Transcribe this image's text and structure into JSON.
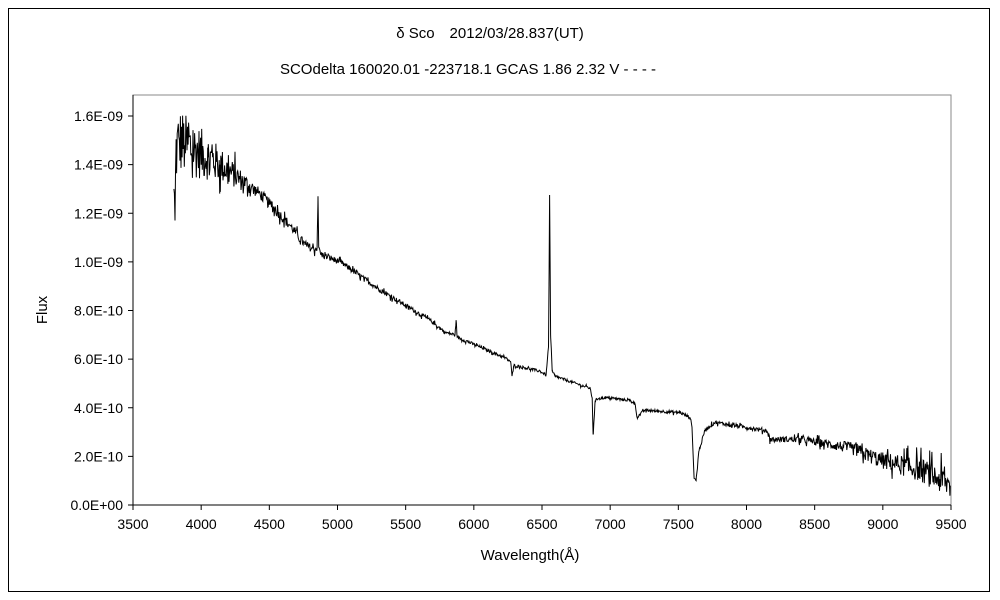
{
  "chart_data": {
    "type": "line",
    "title": "δ Sco　2012/03/28.837(UT)",
    "subtitle": "SCOdelta 160020.01 -223718.1 GCAS 1.86 2.32 V - - - -",
    "xlabel": "Wavelength(Å)",
    "ylabel": "Flux",
    "xlim": [
      3500,
      9500
    ],
    "ylim": [
      0,
      1.7e-09
    ],
    "xticks": [
      3500,
      4000,
      4500,
      5000,
      5500,
      6000,
      6500,
      7000,
      7500,
      8000,
      8500,
      9000,
      9500
    ],
    "xtick_labels": [
      "3500",
      "4000",
      "4500",
      "5000",
      "5500",
      "6000",
      "6500",
      "7000",
      "7500",
      "8000",
      "8500",
      "9000",
      "9500"
    ],
    "yticks": [
      0,
      2e-10,
      4e-10,
      6e-10,
      8e-10,
      1e-09,
      1.2e-09,
      1.4e-09,
      1.6e-09
    ],
    "ytick_labels": [
      "0.0E+00",
      "2.0E-10",
      "4.0E-10",
      "6.0E-10",
      "8.0E-10",
      "1.0E-09",
      "1.2E-09",
      "1.4E-09",
      "1.6E-09"
    ],
    "grid": false,
    "legend": "none",
    "line_color": "#000000",
    "flux_unit_scale": 1e-10,
    "series": [
      {
        "name": "spectrum",
        "points": [
          [
            3800,
            13.0
          ],
          [
            3808,
            11.7
          ],
          [
            3815,
            14.5
          ],
          [
            3840,
            15.0
          ],
          [
            3880,
            14.8
          ],
          [
            3950,
            14.6
          ],
          [
            4050,
            14.3
          ],
          [
            4138,
            14.0
          ],
          [
            4285,
            13.4
          ],
          [
            4432,
            12.8
          ],
          [
            4652,
            11.5
          ],
          [
            4762,
            10.7
          ],
          [
            4835,
            10.5
          ],
          [
            4850,
            10.6
          ],
          [
            4857,
            12.7
          ],
          [
            4862,
            10.6
          ],
          [
            4880,
            10.3
          ],
          [
            5019,
            10.0
          ],
          [
            5312,
            8.85
          ],
          [
            5459,
            8.35
          ],
          [
            5679,
            7.6
          ],
          [
            5789,
            7.1
          ],
          [
            5862,
            7.0
          ],
          [
            5870,
            7.6
          ],
          [
            5878,
            6.9
          ],
          [
            6046,
            6.5
          ],
          [
            6229,
            6.05
          ],
          [
            6270,
            5.9
          ],
          [
            6280,
            5.3
          ],
          [
            6295,
            5.75
          ],
          [
            6486,
            5.5
          ],
          [
            6530,
            5.35
          ],
          [
            6548,
            6.5
          ],
          [
            6556,
            12.75
          ],
          [
            6563,
            7.0
          ],
          [
            6575,
            5.5
          ],
          [
            6595,
            5.3
          ],
          [
            6670,
            5.15
          ],
          [
            6853,
            4.8
          ],
          [
            6868,
            4.4
          ],
          [
            6875,
            2.9
          ],
          [
            6890,
            4.3
          ],
          [
            6920,
            4.4
          ],
          [
            6999,
            4.4
          ],
          [
            7146,
            4.3
          ],
          [
            7180,
            4.2
          ],
          [
            7198,
            3.6
          ],
          [
            7215,
            3.7
          ],
          [
            7250,
            3.9
          ],
          [
            7513,
            3.8
          ],
          [
            7587,
            3.6
          ],
          [
            7600,
            3.2
          ],
          [
            7616,
            1.1
          ],
          [
            7630,
            1.0
          ],
          [
            7650,
            2.2
          ],
          [
            7697,
            3.1
          ],
          [
            7770,
            3.4
          ],
          [
            8100,
            3.1
          ],
          [
            8150,
            3.05
          ],
          [
            8173,
            2.7
          ],
          [
            8394,
            2.7
          ],
          [
            8760,
            2.35
          ],
          [
            8980,
            1.85
          ],
          [
            9274,
            1.45
          ],
          [
            9400,
            1.1
          ],
          [
            9494,
            0.8
          ]
        ],
        "noise": [
          [
            3800,
            1.5
          ],
          [
            4200,
            0.6
          ],
          [
            4400,
            0.25
          ],
          [
            5000,
            0.12
          ],
          [
            6000,
            0.06
          ],
          [
            7000,
            0.05
          ],
          [
            8000,
            0.08
          ],
          [
            8500,
            0.15
          ],
          [
            8900,
            0.3
          ],
          [
            9500,
            0.6
          ]
        ]
      }
    ]
  }
}
